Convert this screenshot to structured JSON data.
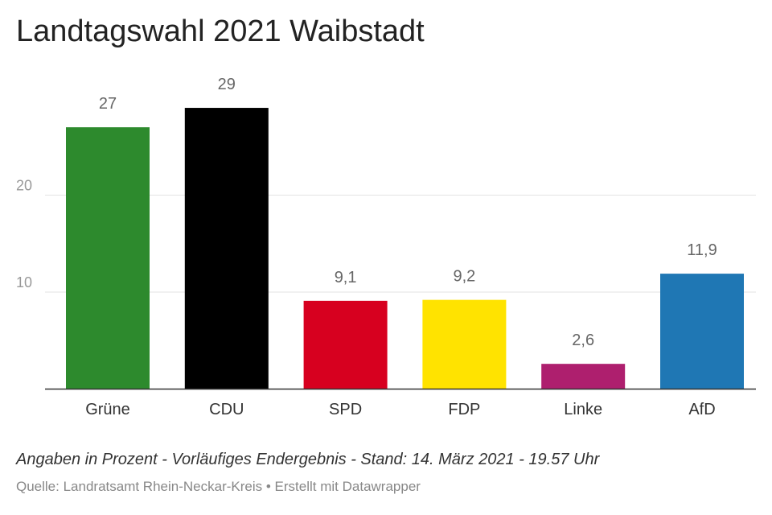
{
  "title": "Landtagswahl 2021 Waibstadt",
  "notes": "Angaben in Prozent - Vorläufiges Endergebnis - Stand: 14. März 2021 - 19.57 Uhr",
  "source_prefix": "Quelle: Landratsamt Rhein-Neckar-Kreis",
  "source_separator": "•",
  "source_suffix": "Erstellt mit Datawrapper",
  "chart_data": {
    "type": "bar",
    "categories": [
      "Grüne",
      "CDU",
      "SPD",
      "FDP",
      "Linke",
      "AfD"
    ],
    "values": [
      27,
      29,
      9.1,
      9.2,
      2.6,
      11.9
    ],
    "value_labels": [
      "27",
      "29",
      "9,1",
      "9,2",
      "2,6",
      "11,9"
    ],
    "colors": [
      "#2d8a2d",
      "#000000",
      "#d7001f",
      "#ffe300",
      "#ae1f6e",
      "#1f77b4"
    ],
    "yticks": [
      10,
      20
    ],
    "ylim": [
      0,
      29
    ],
    "grid": true,
    "legend": "none",
    "xlabel": "",
    "ylabel": ""
  }
}
